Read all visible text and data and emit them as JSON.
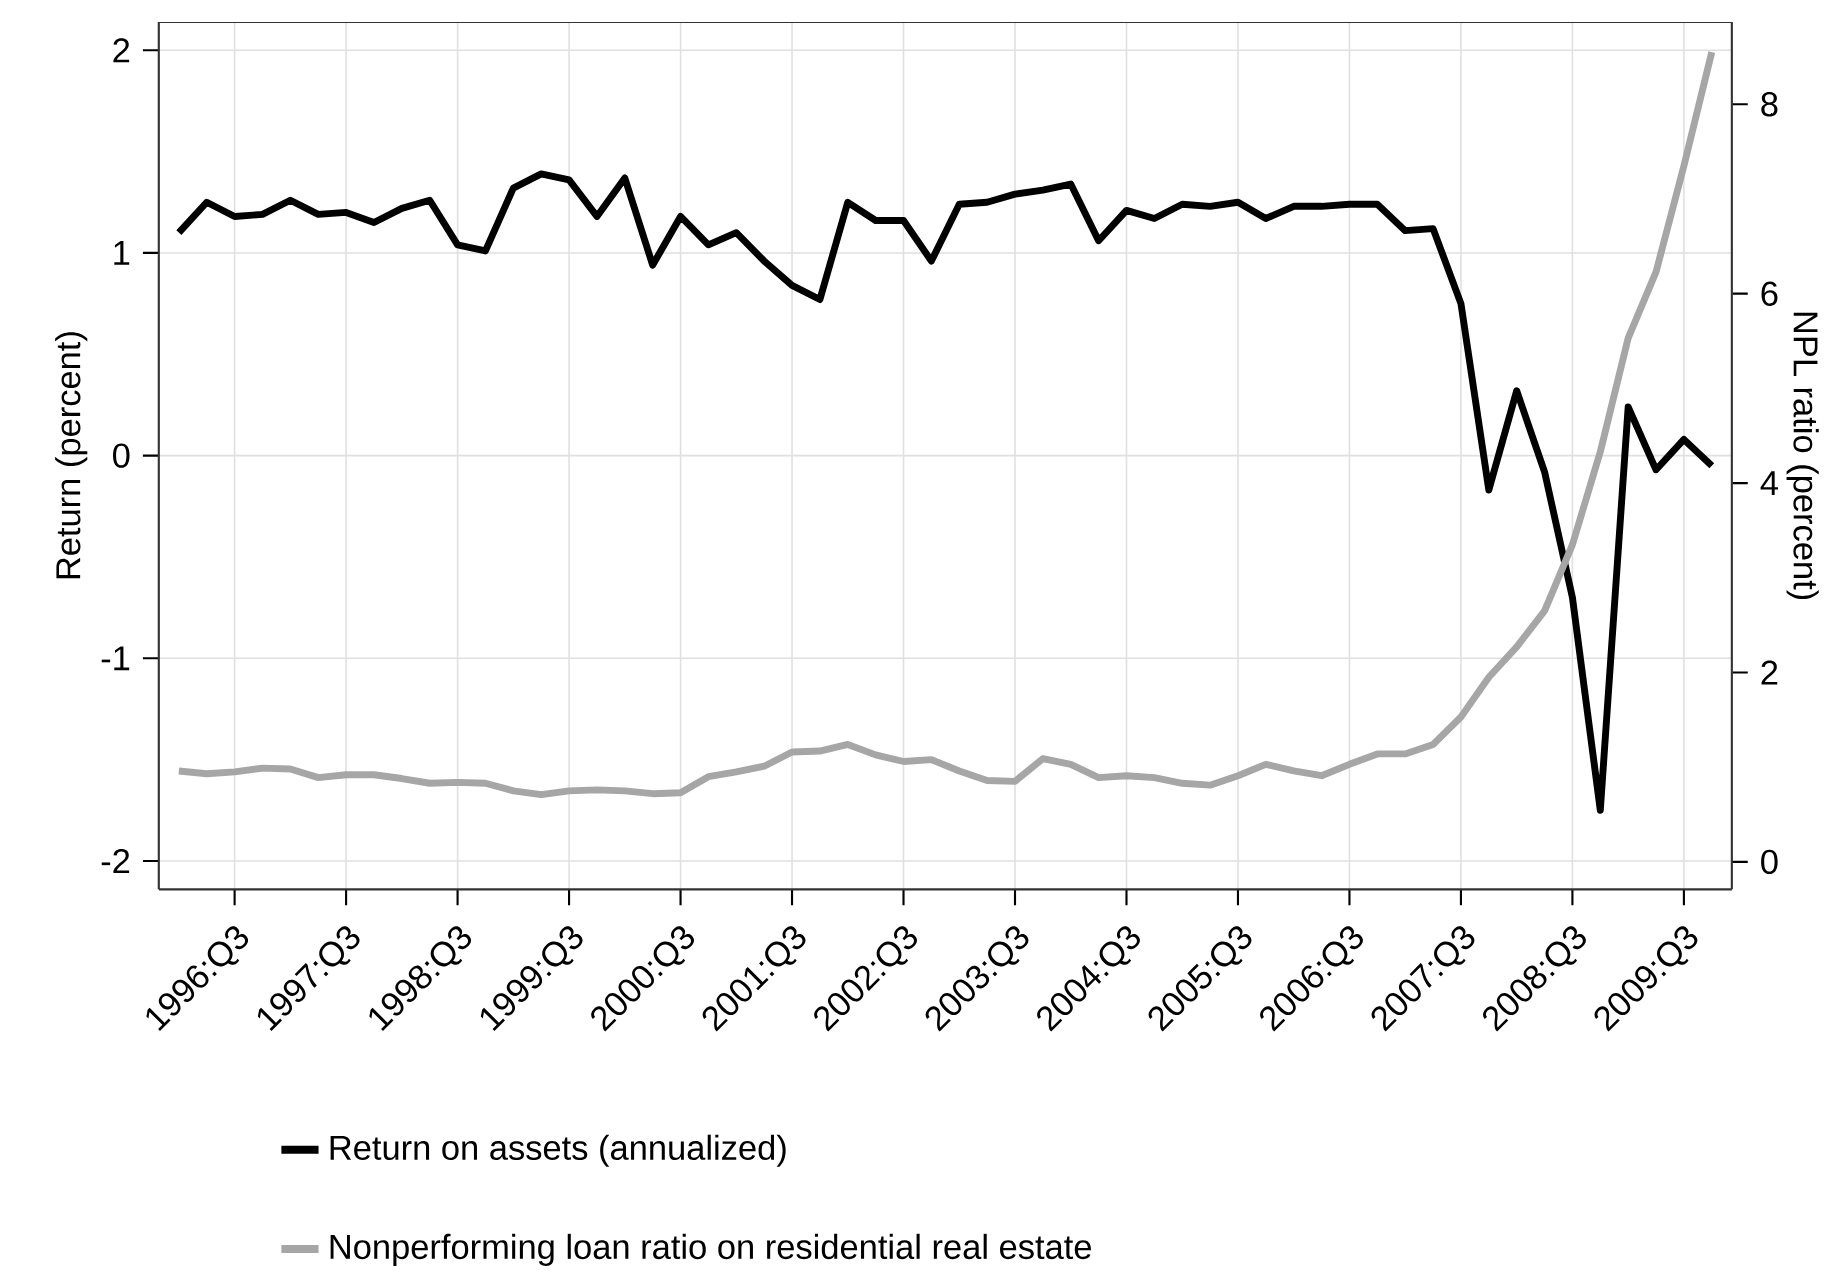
{
  "chart_data": {
    "type": "line",
    "ylabel": "Return (percent)",
    "y2label": "NPL ratio (percent)",
    "categories": [
      null,
      null,
      "1996:Q3",
      null,
      null,
      null,
      "1997:Q3",
      null,
      null,
      null,
      "1998:Q3",
      null,
      null,
      null,
      "1999:Q3",
      null,
      null,
      null,
      "2000:Q3",
      null,
      null,
      null,
      "2001:Q3",
      null,
      null,
      null,
      "2002:Q3",
      null,
      null,
      null,
      "2003:Q3",
      null,
      null,
      null,
      "2004:Q3",
      null,
      null,
      null,
      "2005:Q3",
      null,
      null,
      null,
      "2006:Q3",
      null,
      null,
      null,
      "2007:Q3",
      null,
      null,
      null,
      "2008:Q3",
      null,
      null,
      null,
      "2009:Q3",
      null
    ],
    "series": [
      {
        "name": "Return on assets (annualized)",
        "color": "#000000",
        "values": [
          1.1,
          1.25,
          1.18,
          1.19,
          1.26,
          1.19,
          1.2,
          1.15,
          1.22,
          1.26,
          1.04,
          1.01,
          1.32,
          1.39,
          1.36,
          1.18,
          1.37,
          0.94,
          1.18,
          1.04,
          1.1,
          0.96,
          0.84,
          0.77,
          1.25,
          1.16,
          1.16,
          0.96,
          1.24,
          1.25,
          1.29,
          1.31,
          1.34,
          1.06,
          1.21,
          1.17,
          1.24,
          1.23,
          1.25,
          1.17,
          1.23,
          1.23,
          1.24,
          1.24,
          1.11,
          1.12,
          0.75,
          -0.17,
          0.32,
          -0.08,
          -0.7,
          -1.75,
          0.24,
          -0.07,
          0.08,
          -0.05
        ]
      },
      {
        "name": "Nonperforming loan ratio on residential real estate",
        "color": "#a6a6a6",
        "axis": "y2",
        "values": [
          0.96,
          0.93,
          0.95,
          0.99,
          0.98,
          0.89,
          0.92,
          0.92,
          0.88,
          0.83,
          0.84,
          0.83,
          0.75,
          0.71,
          0.75,
          0.76,
          0.75,
          0.72,
          0.73,
          0.9,
          0.95,
          1.01,
          1.16,
          1.17,
          1.24,
          1.13,
          1.06,
          1.08,
          0.96,
          0.86,
          0.85,
          1.09,
          1.03,
          0.89,
          0.91,
          0.89,
          0.83,
          0.81,
          0.91,
          1.03,
          0.96,
          0.91,
          1.03,
          1.14,
          1.14,
          1.24,
          1.53,
          1.95,
          2.27,
          2.65,
          3.35,
          4.33,
          5.53,
          6.23,
          7.35,
          8.55
        ]
      }
    ],
    "ylim": [
      -2.14,
      2.14
    ],
    "yticks": [
      -2,
      -1,
      0,
      1,
      2
    ],
    "y2lim": [
      -0.29,
      8.87
    ],
    "y2ticks": [
      0,
      2,
      4,
      6,
      8
    ],
    "grid": true,
    "legend": "bottom",
    "marker": "none",
    "line_style": "solid"
  }
}
